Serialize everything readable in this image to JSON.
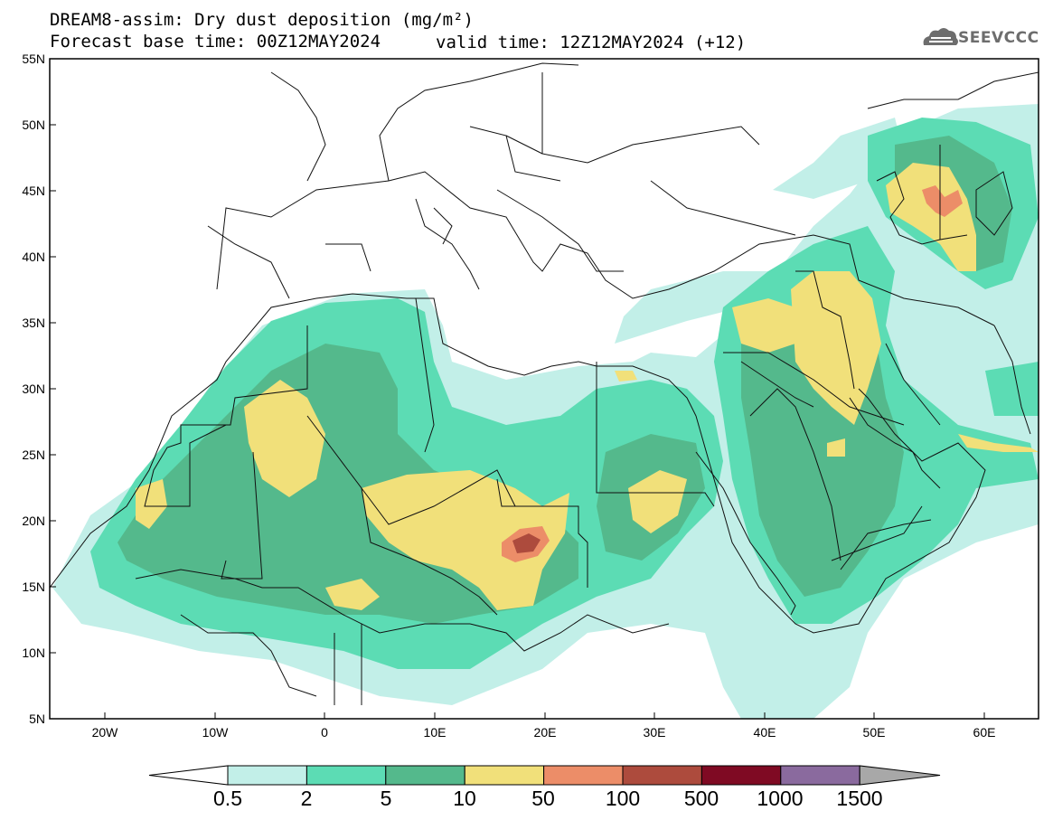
{
  "header": {
    "title_line1": "DREAM8-assim: Dry dust deposition (mg/m²)",
    "base_time": "Forecast base time: 00Z12MAY2024",
    "valid_time": "valid time: 12Z12MAY2024 (+12)"
  },
  "logo": {
    "name": "SEEVCCC",
    "icon": "cloud-icon"
  },
  "map": {
    "lat_labels": [
      "55N",
      "50N",
      "45N",
      "40N",
      "35N",
      "30N",
      "25N",
      "20N",
      "15N",
      "10N",
      "5N"
    ],
    "lon_labels": [
      "20W",
      "10W",
      "0",
      "10E",
      "20E",
      "30E",
      "40E",
      "50E",
      "60E"
    ]
  },
  "colorbar": {
    "labels": [
      "0.5",
      "2",
      "5",
      "10",
      "50",
      "100",
      "500",
      "1000",
      "1500"
    ],
    "colors": [
      "#c2efe8",
      "#5cdcb4",
      "#54b98c",
      "#f1e07a",
      "#ec8d68",
      "#ad4b3d",
      "#7f0a23",
      "#8a6a9e"
    ],
    "over_color": "#a8a8a8",
    "under_color": "#ffffff"
  },
  "palette": {
    "c1": "#c2efe8",
    "c2": "#5cdcb4",
    "c3": "#54b98c",
    "c4": "#f1e07a",
    "c5": "#ec8d68",
    "c6": "#ad4b3d",
    "border": "#111111"
  }
}
